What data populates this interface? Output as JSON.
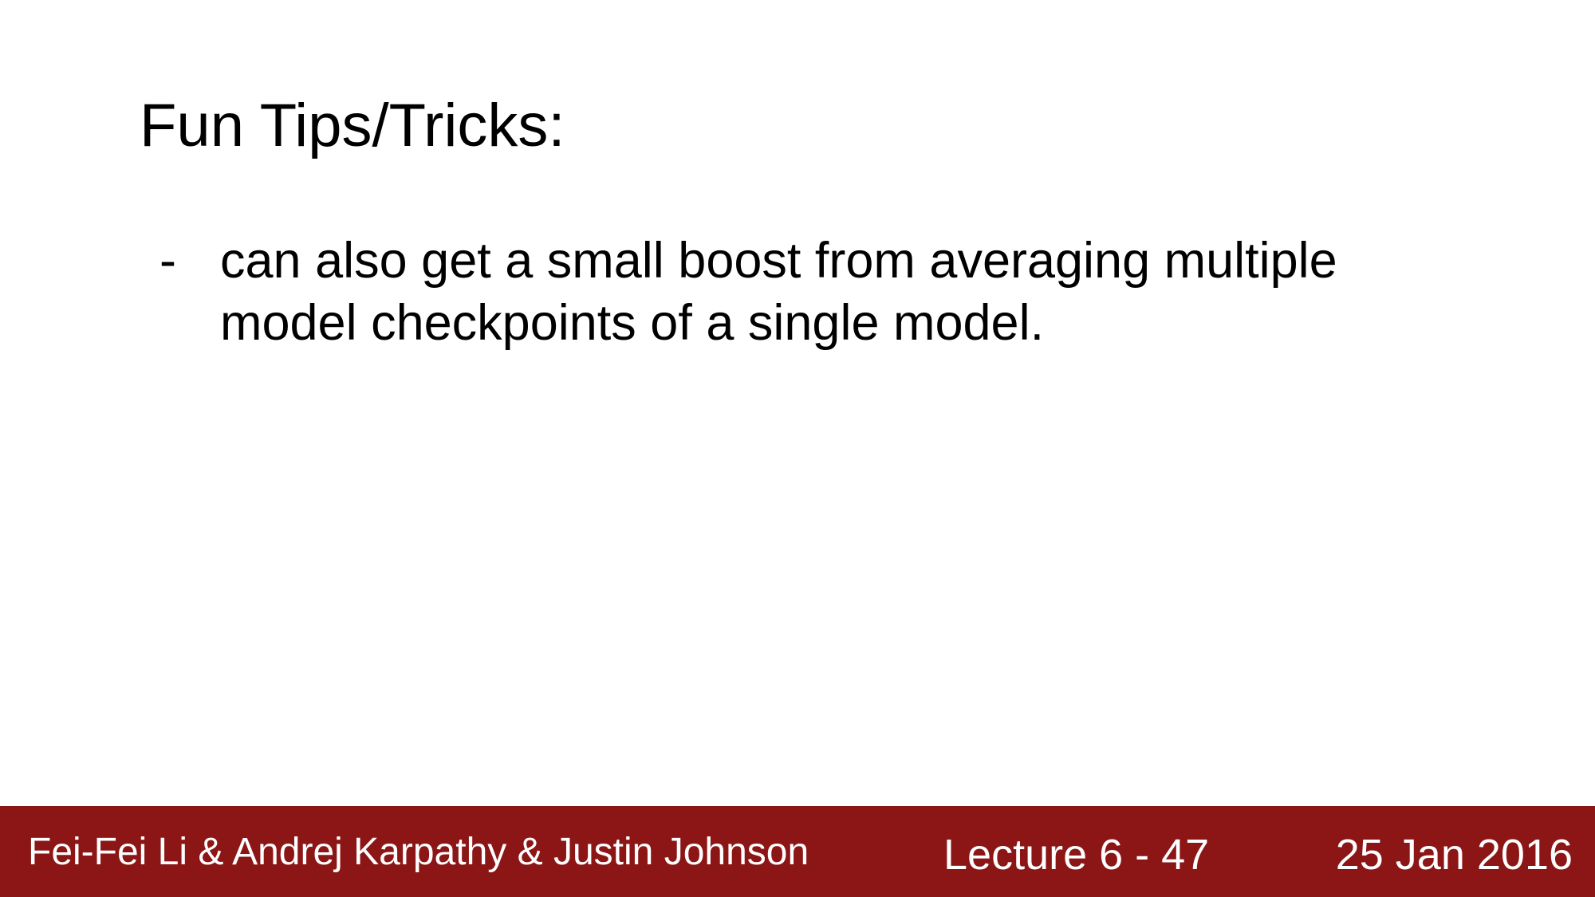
{
  "slide": {
    "title": "Fun Tips/Tricks:",
    "bullets": [
      {
        "marker": "-",
        "text": "can also get a small boost from averaging multiple model checkpoints of a single model."
      }
    ]
  },
  "footer": {
    "authors": "Fei-Fei Li & Andrej Karpathy & Justin Johnson",
    "lecture": "Lecture 6 - 47",
    "date": "25 Jan 2016",
    "background_color": "#8c1515",
    "text_color": "#ffffff"
  }
}
